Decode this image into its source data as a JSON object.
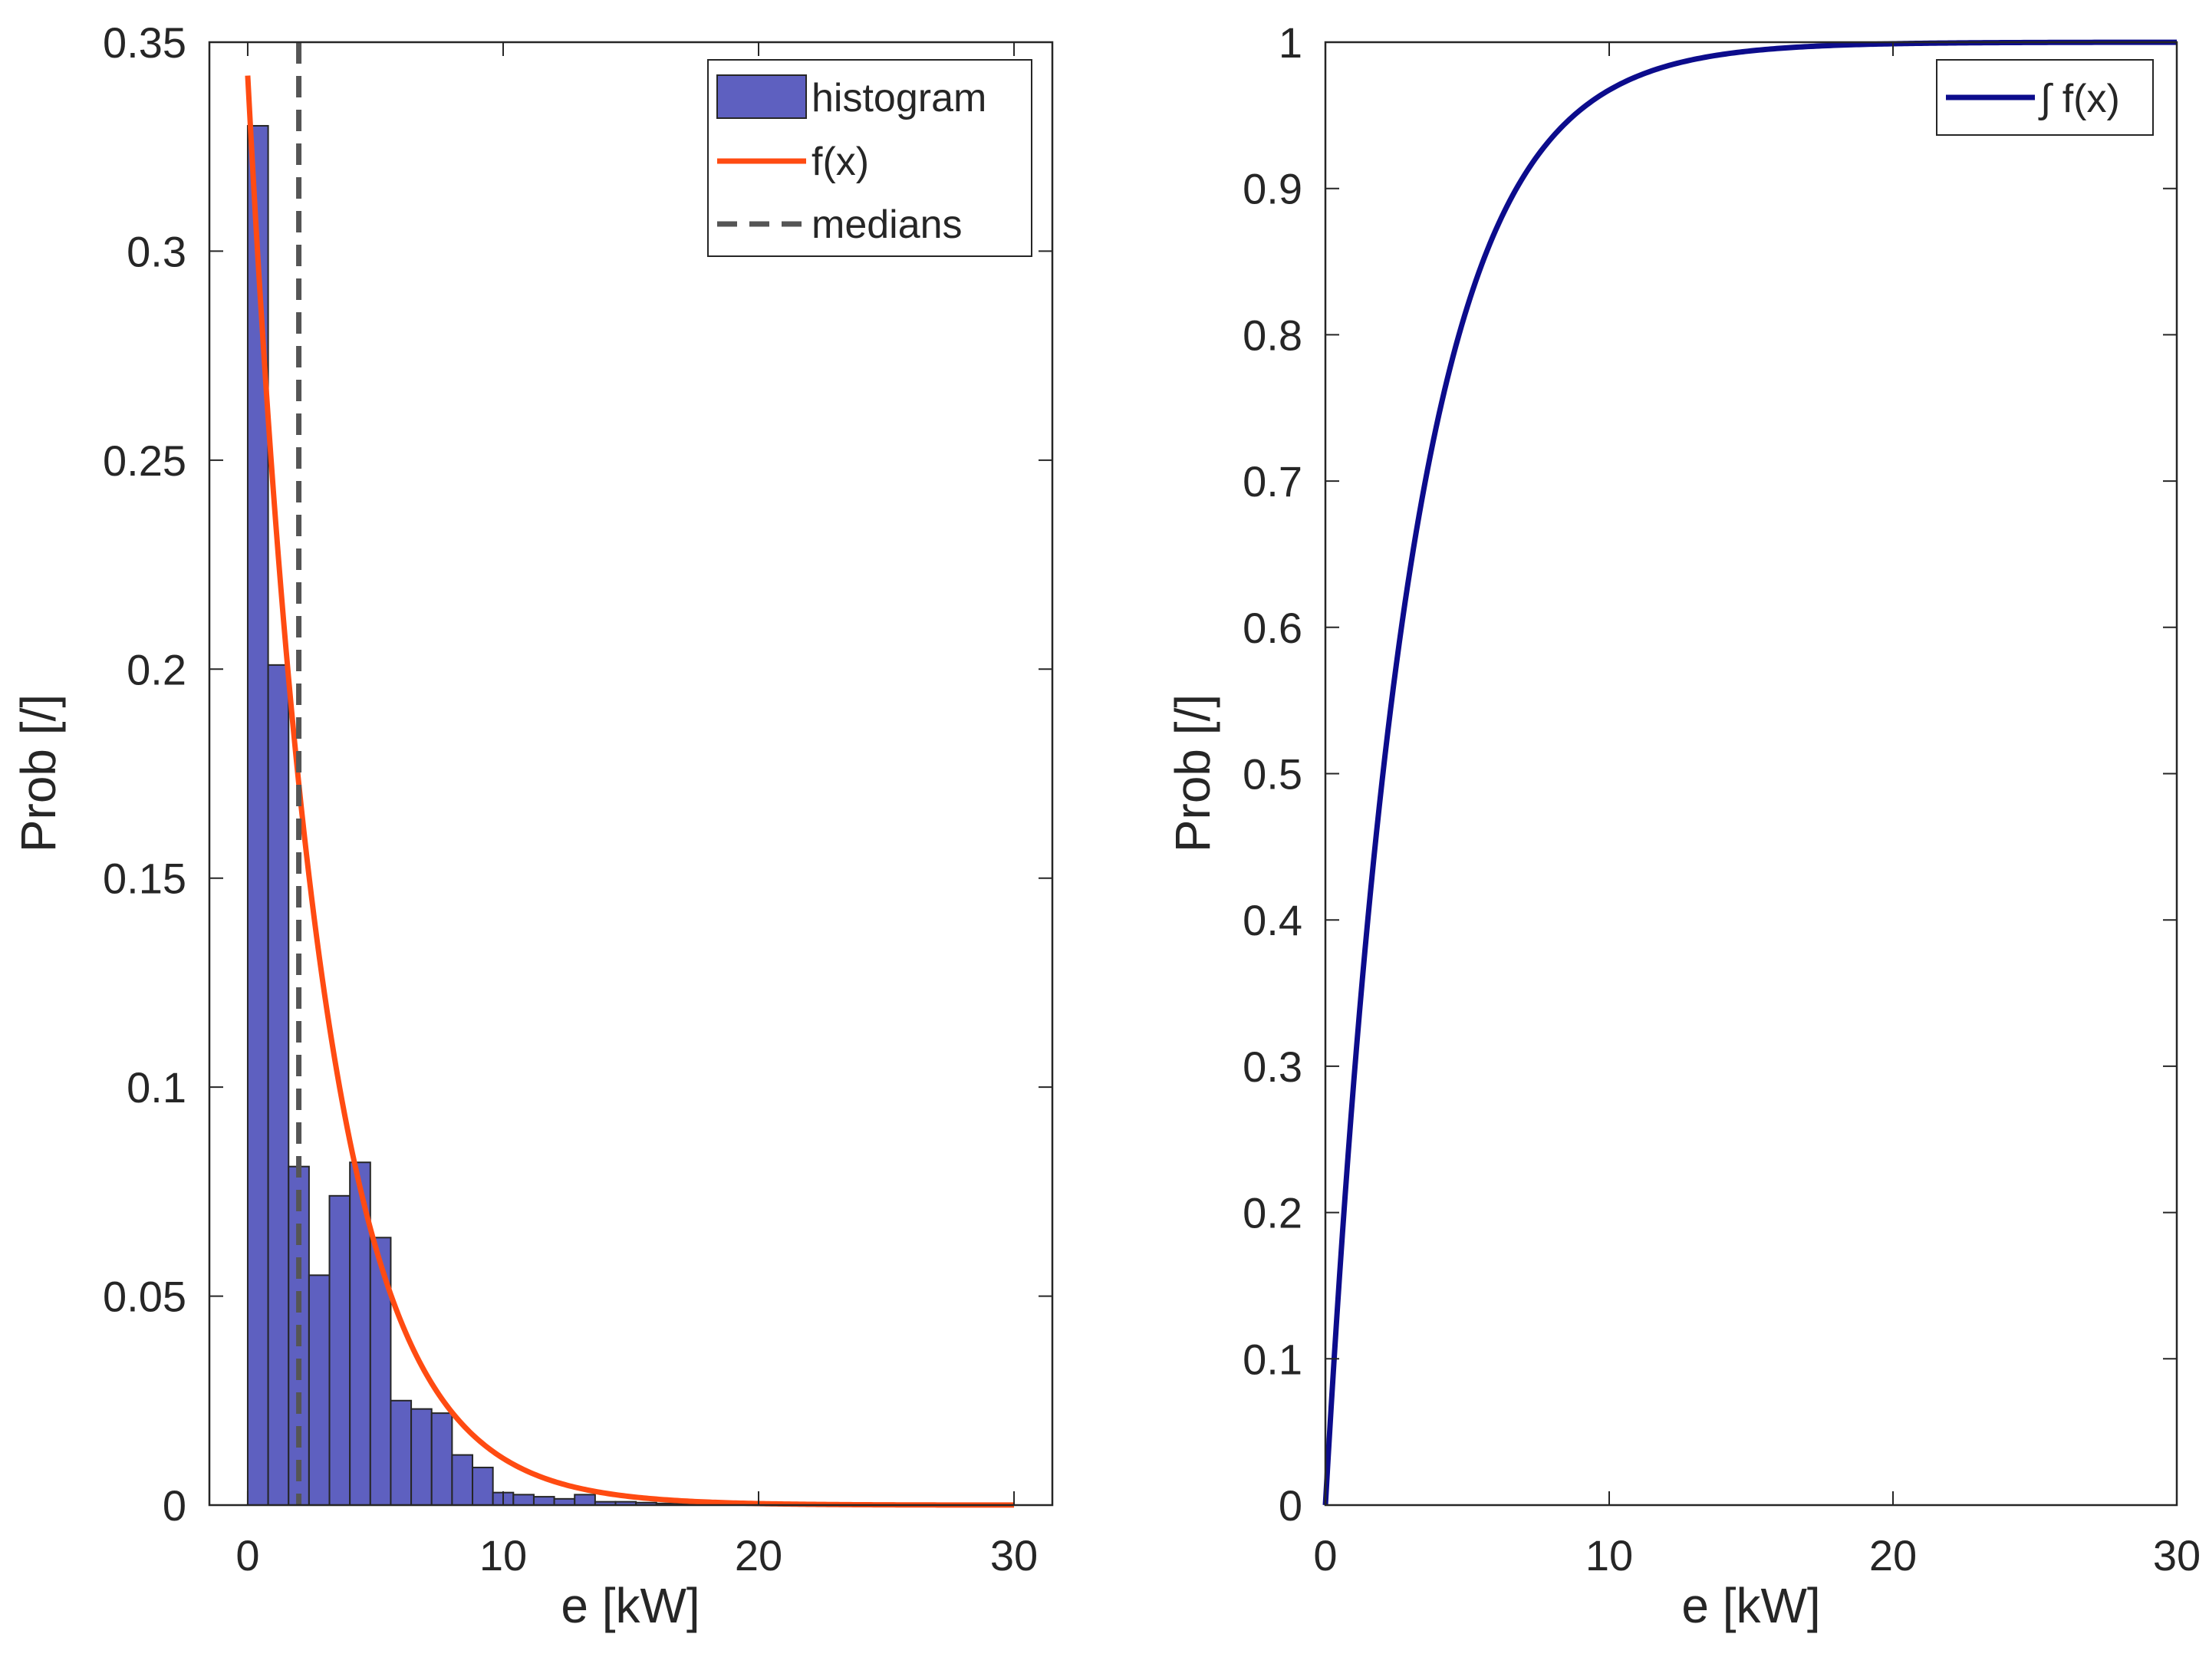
{
  "chart_data": [
    {
      "type": "bar",
      "title": "",
      "xlabel": "e [kW]",
      "ylabel": "Prob [/]",
      "xlim": [
        -1.5,
        31.5
      ],
      "ylim": [
        0,
        0.35
      ],
      "xticks": [
        0,
        10,
        20,
        30
      ],
      "xtick_labels": [
        "0",
        "10",
        "20",
        "30"
      ],
      "yticks": [
        0,
        0.05,
        0.1,
        0.15,
        0.2,
        0.25,
        0.3,
        0.35
      ],
      "ytick_labels": [
        "0",
        "0.05",
        "0.1",
        "0.15",
        "0.2",
        "0.25",
        "0.3",
        "0.35"
      ],
      "grid": false,
      "legend": {
        "location": "top-right",
        "entries": [
          {
            "label": "histogram",
            "kind": "patch",
            "color": "#5e60c0"
          },
          {
            "label": "f(x)",
            "kind": "line",
            "color": "#ff4b12"
          },
          {
            "label": "medians",
            "kind": "dashed",
            "color": "#555555"
          }
        ]
      },
      "histogram": {
        "name": "histogram",
        "bin_width": 0.8,
        "bin_starts": [
          0,
          0.8,
          1.6,
          2.4,
          3.2,
          4.0,
          4.8,
          5.6,
          6.4,
          7.2,
          8.0,
          8.8,
          9.6,
          10.4,
          11.2,
          12.0,
          12.8,
          13.6,
          14.4,
          15.2,
          16.0,
          16.8,
          17.6,
          18.4,
          19.2
        ],
        "values": [
          0.33,
          0.201,
          0.081,
          0.055,
          0.074,
          0.082,
          0.064,
          0.025,
          0.023,
          0.022,
          0.012,
          0.009,
          0.003,
          0.0025,
          0.002,
          0.0015,
          0.0025,
          0.0008,
          0.0008,
          0.0006,
          0.0004,
          0.0003,
          0.0002,
          0.0001,
          0.0001
        ],
        "color": "#5e60c0"
      },
      "pdf": {
        "name": "f(x)",
        "rate": 0.342,
        "x_range": [
          0,
          30
        ],
        "color": "#ff4b12"
      },
      "median": {
        "name": "medians",
        "x": 2,
        "color": "#555555"
      }
    },
    {
      "type": "line",
      "title": "",
      "xlabel": "e [kW]",
      "ylabel": "Prob [/]",
      "xlim": [
        0,
        30
      ],
      "ylim": [
        0,
        1
      ],
      "xticks": [
        0,
        10,
        20,
        30
      ],
      "xtick_labels": [
        "0",
        "10",
        "20",
        "30"
      ],
      "yticks": [
        0,
        0.1,
        0.2,
        0.3,
        0.4,
        0.5,
        0.6,
        0.7,
        0.8,
        0.9,
        1
      ],
      "ytick_labels": [
        "0",
        "0.1",
        "0.2",
        "0.3",
        "0.4",
        "0.5",
        "0.6",
        "0.7",
        "0.8",
        "0.9",
        "1"
      ],
      "grid": false,
      "legend": {
        "location": "top-right",
        "entries": [
          {
            "label": "∫ f(x)",
            "kind": "line",
            "color": "#0c0c8c"
          }
        ]
      },
      "series": [
        {
          "name": "∫ f(x)",
          "function": "1 - exp(-rate*x)",
          "rate": 0.342,
          "x_range": [
            0,
            30
          ],
          "color": "#0c0c8c"
        }
      ]
    }
  ]
}
